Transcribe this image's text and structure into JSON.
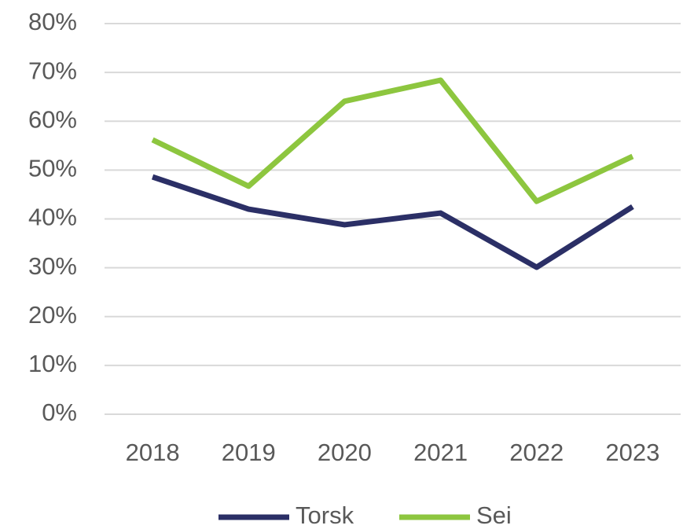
{
  "chart_data": {
    "type": "line",
    "categories": [
      "2018",
      "2019",
      "2020",
      "2021",
      "2022",
      "2023"
    ],
    "series": [
      {
        "name": "Torsk",
        "color": "#2b2f66",
        "values": [
          48.6,
          42.0,
          38.8,
          41.2,
          30.1,
          42.5
        ]
      },
      {
        "name": "Sei",
        "color": "#8dc63f",
        "values": [
          56.2,
          46.7,
          64.1,
          68.4,
          43.6,
          52.8
        ]
      }
    ],
    "ylim": [
      0,
      80
    ],
    "yticks": [
      {
        "value": 0,
        "label": "0%"
      },
      {
        "value": 10,
        "label": "10%"
      },
      {
        "value": 20,
        "label": "20%"
      },
      {
        "value": 30,
        "label": "30%"
      },
      {
        "value": 40,
        "label": "40%"
      },
      {
        "value": 50,
        "label": "50%"
      },
      {
        "value": 60,
        "label": "60%"
      },
      {
        "value": 70,
        "label": "70%"
      },
      {
        "value": 80,
        "label": "80%"
      }
    ],
    "grid": true,
    "legend": "bottom"
  }
}
